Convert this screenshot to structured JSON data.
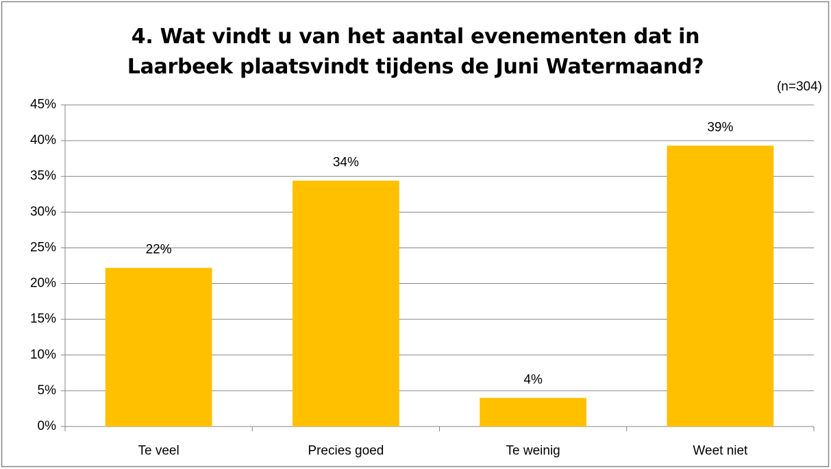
{
  "chart_data": {
    "type": "bar",
    "title": "4. Wat vindt u van het aantal evenementen dat in Laarbeek plaatsvindt tijdens de Juni Watermaand?",
    "annotation": "(n=304)",
    "categories": [
      "Te veel",
      "Precies goed",
      "Te weinig",
      "Weet niet"
    ],
    "values": [
      22.2,
      34.4,
      4.0,
      39.3
    ],
    "value_labels": [
      "22%",
      "34%",
      "4%",
      "39%"
    ],
    "color": "#ffc000",
    "ylim": [
      0,
      45
    ],
    "yticks": [
      {
        "value": 0,
        "label": "0%"
      },
      {
        "value": 5,
        "label": "5%"
      },
      {
        "value": 10,
        "label": "10%"
      },
      {
        "value": 15,
        "label": "15%"
      },
      {
        "value": 20,
        "label": "20%"
      },
      {
        "value": 25,
        "label": "25%"
      },
      {
        "value": 30,
        "label": "30%"
      },
      {
        "value": 35,
        "label": "35%"
      },
      {
        "value": 40,
        "label": "40%"
      },
      {
        "value": 45,
        "label": "45%"
      }
    ],
    "grid": true
  }
}
